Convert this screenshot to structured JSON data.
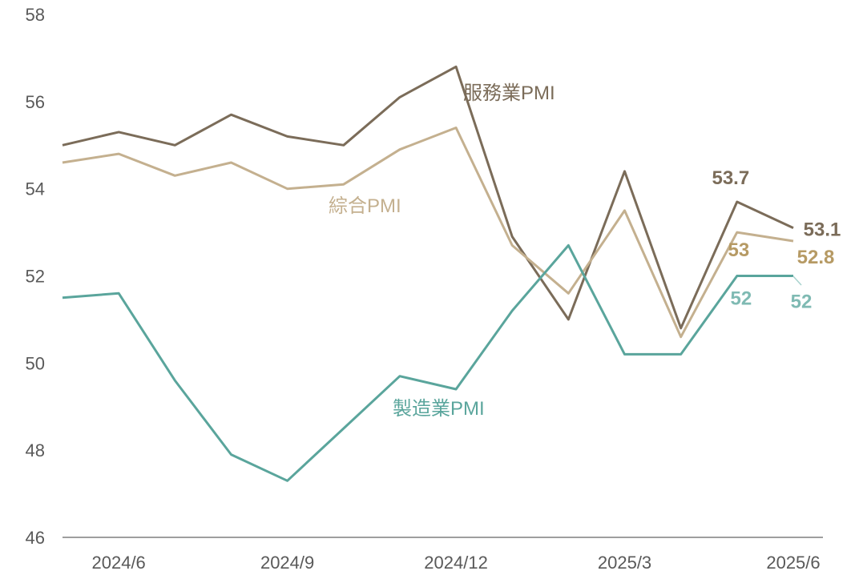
{
  "chart_data": {
    "type": "line",
    "x": [
      "2024/5",
      "2024/6",
      "2024/7",
      "2024/8",
      "2024/9",
      "2024/10",
      "2024/11",
      "2024/12",
      "2025/1",
      "2025/2",
      "2025/3",
      "2025/4",
      "2025/5",
      "2025/6"
    ],
    "x_tick_labels": [
      "2024/6",
      "2024/9",
      "2024/12",
      "2025/3",
      "2025/6"
    ],
    "y_tick_labels": [
      "46",
      "48",
      "50",
      "52",
      "54",
      "56",
      "58"
    ],
    "ylim": [
      46,
      58
    ],
    "grid": false,
    "series": [
      {
        "name": "服務業PMI",
        "color": "#7b6c59",
        "values": [
          55.0,
          55.3,
          55.0,
          55.7,
          55.2,
          55.0,
          56.1,
          56.8,
          52.9,
          51.0,
          54.4,
          50.8,
          53.7,
          53.1
        ],
        "point_labels": [
          {
            "index": 12,
            "text": "53.7"
          },
          {
            "index": 13,
            "text": "53.1"
          }
        ]
      },
      {
        "name": "綜合PMI",
        "color": "#c4b08f",
        "values": [
          54.6,
          54.8,
          54.3,
          54.6,
          54.0,
          54.1,
          54.9,
          55.4,
          52.7,
          51.6,
          53.5,
          50.6,
          53.0,
          52.8
        ],
        "point_labels": [
          {
            "index": 12,
            "text": "53"
          },
          {
            "index": 13,
            "text": "52.8"
          }
        ]
      },
      {
        "name": "製造業PMI",
        "color": "#5aa59c",
        "values": [
          51.5,
          51.6,
          49.6,
          47.9,
          47.3,
          48.5,
          49.7,
          49.4,
          51.2,
          52.7,
          50.2,
          50.2,
          52.0,
          52.0
        ],
        "point_labels": [
          {
            "index": 12,
            "text": "52"
          },
          {
            "index": 13,
            "text": "52"
          }
        ]
      }
    ]
  },
  "colors": {
    "axis": "#7f7f7f",
    "tick_text": "#595959",
    "label_service": "#7b6c59",
    "label_composite": "#b69a64",
    "label_manufacturing": "#7fbab3"
  }
}
